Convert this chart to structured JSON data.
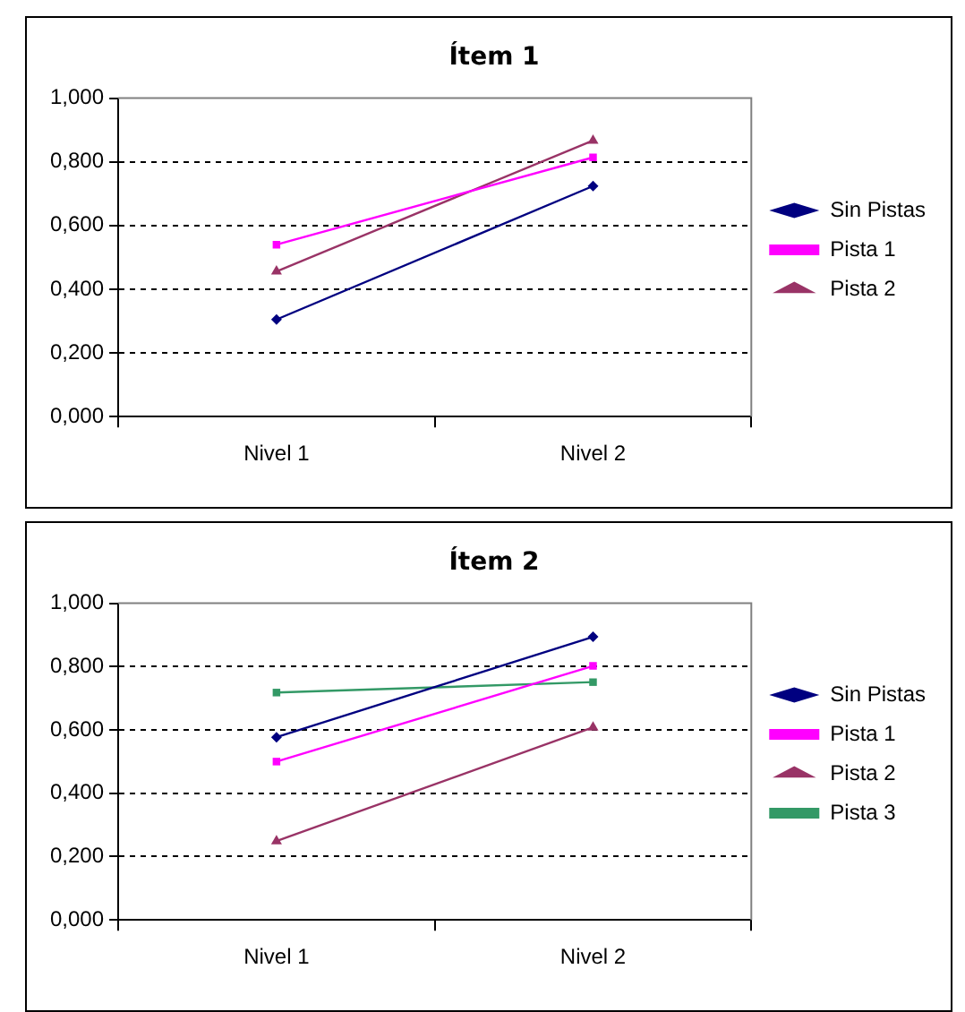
{
  "chart_data": [
    {
      "type": "line",
      "title": "Ítem 1",
      "categories": [
        "Nivel 1",
        "Nivel 2"
      ],
      "series": [
        {
          "name": "Sin Pistas",
          "color": "#000080",
          "marker": "diamond",
          "values": [
            0.305,
            0.724
          ]
        },
        {
          "name": "Pista 1",
          "color": "#ff00ff",
          "marker": "square",
          "values": [
            0.54,
            0.814
          ]
        },
        {
          "name": "Pista 2",
          "color": "#993366",
          "marker": "triangle",
          "values": [
            0.456,
            0.867
          ]
        }
      ],
      "ylim": [
        0,
        1
      ],
      "yticks": [
        {
          "value": 0,
          "label": "0,000"
        },
        {
          "value": 0.2,
          "label": "0,200"
        },
        {
          "value": 0.4,
          "label": "0,400"
        },
        {
          "value": 0.6,
          "label": "0,600"
        },
        {
          "value": 0.8,
          "label": "0,800"
        },
        {
          "value": 1,
          "label": "1,000"
        }
      ],
      "grid": "y",
      "legend": "right",
      "line_style": "solid"
    },
    {
      "type": "line",
      "title": "Ítem 2",
      "categories": [
        "Nivel 1",
        "Nivel 2"
      ],
      "series": [
        {
          "name": "Sin Pistas",
          "color": "#000080",
          "marker": "diamond",
          "values": [
            0.577,
            0.894
          ]
        },
        {
          "name": "Pista 1",
          "color": "#ff00ff",
          "marker": "square",
          "values": [
            0.5,
            0.802
          ]
        },
        {
          "name": "Pista 2",
          "color": "#993366",
          "marker": "triangle",
          "values": [
            0.249,
            0.608
          ]
        },
        {
          "name": "Pista 3",
          "color": "#339966",
          "marker": "square",
          "values": [
            0.718,
            0.751
          ]
        }
      ],
      "ylim": [
        0,
        1
      ],
      "yticks": [
        {
          "value": 0,
          "label": "0,000"
        },
        {
          "value": 0.2,
          "label": "0,200"
        },
        {
          "value": 0.4,
          "label": "0,400"
        },
        {
          "value": 0.6,
          "label": "0,600"
        },
        {
          "value": 0.8,
          "label": "0,800"
        },
        {
          "value": 1,
          "label": "1,000"
        }
      ],
      "grid": "y",
      "legend": "right",
      "line_style": "solid"
    }
  ]
}
